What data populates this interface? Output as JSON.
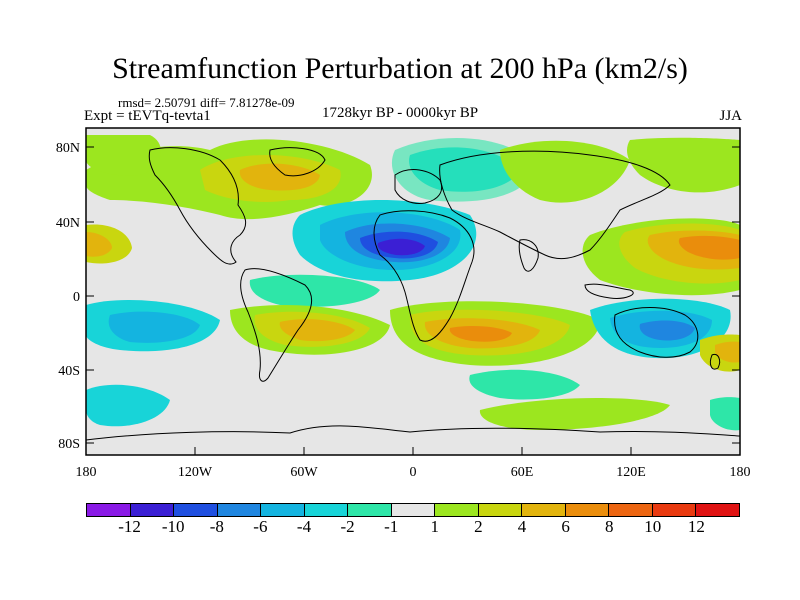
{
  "title": "Streamfunction Perturbation at 200 hPa (km2/s)",
  "stats": "rmsd= 2.50791  diff= 7.81278e-09",
  "experiment": "Expt = tEVTq-tevta1",
  "period": "1728kyr BP - 0000kyr BP",
  "season": "JJA",
  "lat_labels": [
    "80N",
    "40N",
    "0",
    "40S",
    "80S"
  ],
  "lon_labels": [
    "180",
    "120W",
    "60W",
    "0",
    "60E",
    "120E",
    "180"
  ],
  "colorbar": {
    "colors": [
      "#8a1ae6",
      "#3b1fd4",
      "#1f4fe0",
      "#1f86e0",
      "#14b4e0",
      "#18d4d8",
      "#2ee6a8",
      "#e6e6e6",
      "#9ce61f",
      "#c9d60f",
      "#e2b40d",
      "#ea8d0c",
      "#ec6511",
      "#e93a10",
      "#e01313"
    ],
    "labels": [
      "-12",
      "-10",
      "-8",
      "-6",
      "-4",
      "-2",
      "-1",
      "1",
      "2",
      "4",
      "6",
      "8",
      "10",
      "12"
    ]
  },
  "map_data": {
    "contour_colors": {
      "neg1": "#2ee6a8",
      "neg2": "#18d4d8",
      "neg4": "#14b4e0",
      "neg6": "#1f86e0",
      "neg8": "#1f4fe0",
      "neg10": "#3b1fd4",
      "pos2": "#9ce61f",
      "pos4": "#c9d60f",
      "pos6": "#e2b40d",
      "pos8": "#ea8d0c",
      "neutral": "#e6e6e6"
    }
  }
}
